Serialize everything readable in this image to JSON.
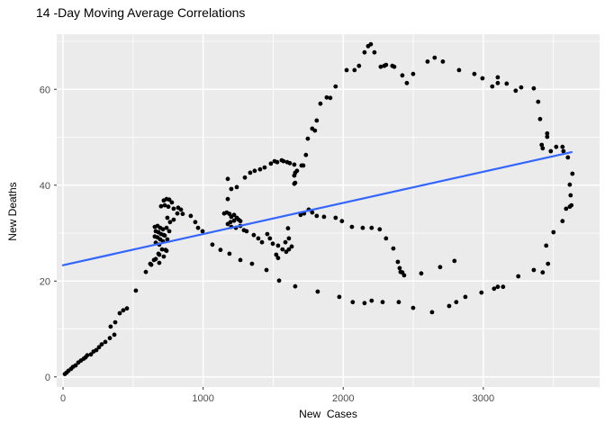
{
  "chart_data": {
    "type": "scatter",
    "title": "14 -Day Moving Average Correlations",
    "xlabel": "New  Cases",
    "ylabel": "New Deaths",
    "legend": "none",
    "grid": "white major and minor gridlines on gray panel",
    "xlim": [
      -45,
      3830
    ],
    "ylim": [
      -2.1,
      71.5
    ],
    "x_ticks": [
      0,
      1000,
      2000,
      3000
    ],
    "x_minor_ticks": [
      500,
      1500,
      2500,
      3500
    ],
    "y_ticks": [
      0,
      20,
      40,
      60
    ],
    "y_minor_ticks": [
      10,
      30,
      50,
      70
    ],
    "colors": {
      "panel_bg": "#EBEBEB",
      "grid": "#FFFFFF",
      "points": "#000000",
      "trend_line": "#3366FF",
      "tick_label": "#4D4D4D",
      "tick_mark": "#333333",
      "title_text": "#000000"
    },
    "trend_line": {
      "type": "linear",
      "x": [
        0,
        3630
      ],
      "y": [
        23.3,
        46.9
      ]
    },
    "points": [
      [
        13,
        0.6
      ],
      [
        26,
        0.9
      ],
      [
        39,
        1.3
      ],
      [
        58,
        1.7
      ],
      [
        71,
        2.1
      ],
      [
        90,
        2.4
      ],
      [
        109,
        3
      ],
      [
        128,
        3.4
      ],
      [
        148,
        3.8
      ],
      [
        161,
        4.1
      ],
      [
        173,
        4.5
      ],
      [
        199,
        4.7
      ],
      [
        218,
        5.3
      ],
      [
        238,
        5.6
      ],
      [
        257,
        6.2
      ],
      [
        276,
        6.8
      ],
      [
        302,
        7.3
      ],
      [
        334,
        8.1
      ],
      [
        366,
        8.8
      ],
      [
        340,
        10.5
      ],
      [
        373,
        11.4
      ],
      [
        405,
        13.3
      ],
      [
        430,
        13.9
      ],
      [
        456,
        14.3
      ],
      [
        520,
        18
      ],
      [
        591,
        21.9
      ],
      [
        623,
        23.6
      ],
      [
        662,
        24.6
      ],
      [
        687,
        25.5
      ],
      [
        732,
        26.5
      ],
      [
        719,
        36.8
      ],
      [
        739,
        37.1
      ],
      [
        758,
        37
      ],
      [
        777,
        36.4
      ],
      [
        726,
        35.8
      ],
      [
        700,
        35.6
      ],
      [
        752,
        35.5
      ],
      [
        790,
        35.1
      ],
      [
        822,
        35.3
      ],
      [
        842,
        34.9
      ],
      [
        816,
        34.1
      ],
      [
        854,
        34
      ],
      [
        912,
        33.6
      ],
      [
        944,
        32.3
      ],
      [
        996,
        30.4
      ],
      [
        745,
        33.2
      ],
      [
        764,
        32.3
      ],
      [
        790,
        32.8
      ],
      [
        739,
        31.1
      ],
      [
        758,
        30.4
      ],
      [
        726,
        29.5
      ],
      [
        745,
        28.7
      ],
      [
        655,
        31.3
      ],
      [
        675,
        31.5
      ],
      [
        694,
        31.1
      ],
      [
        713,
        30.8
      ],
      [
        662,
        30.4
      ],
      [
        681,
        30.2
      ],
      [
        700,
        29.8
      ],
      [
        719,
        29.6
      ],
      [
        655,
        29.3
      ],
      [
        675,
        29.1
      ],
      [
        694,
        28.7
      ],
      [
        713,
        28.3
      ],
      [
        662,
        28
      ],
      [
        687,
        27.6
      ],
      [
        707,
        26.6
      ],
      [
        739,
        26.3
      ],
      [
        681,
        25.7
      ],
      [
        719,
        25.1
      ],
      [
        649,
        24.4
      ],
      [
        687,
        23.8
      ],
      [
        630,
        23.4
      ],
      [
        964,
        31.1
      ],
      [
        1176,
        41.3
      ],
      [
        1240,
        39.6
      ],
      [
        1298,
        41.6
      ],
      [
        1201,
        39.2
      ],
      [
        1176,
        37.1
      ],
      [
        1169,
        34.3
      ],
      [
        1150,
        34.1
      ],
      [
        1188,
        34
      ],
      [
        1201,
        33.4
      ],
      [
        1221,
        33.8
      ],
      [
        1240,
        33.2
      ],
      [
        1253,
        32.8
      ],
      [
        1266,
        32.5
      ],
      [
        1221,
        32.6
      ],
      [
        1195,
        32.3
      ],
      [
        1176,
        31.9
      ],
      [
        1201,
        31.3
      ],
      [
        1234,
        31.1
      ],
      [
        1266,
        31.5
      ],
      [
        1291,
        30.6
      ],
      [
        1310,
        30.4
      ],
      [
        1362,
        29.6
      ],
      [
        1394,
        28.9
      ],
      [
        1420,
        28.1
      ],
      [
        1458,
        29.8
      ],
      [
        1477,
        28.9
      ],
      [
        1497,
        27.8
      ],
      [
        1535,
        27.4
      ],
      [
        1587,
        28.1
      ],
      [
        1612,
        28.9
      ],
      [
        1606,
        31
      ],
      [
        1593,
        26.1
      ],
      [
        1567,
        26.6
      ],
      [
        1612,
        26.6
      ],
      [
        1632,
        27.2
      ],
      [
        1535,
        24.8
      ],
      [
        1522,
        25.5
      ],
      [
        1336,
        42.6
      ],
      [
        1368,
        43
      ],
      [
        1407,
        43.3
      ],
      [
        1439,
        43.7
      ],
      [
        1484,
        44.5
      ],
      [
        1510,
        45
      ],
      [
        1529,
        44.8
      ],
      [
        1561,
        45.2
      ],
      [
        1574,
        45
      ],
      [
        1600,
        44.8
      ],
      [
        1619,
        44.6
      ],
      [
        1651,
        44.3
      ],
      [
        1702,
        44.1
      ],
      [
        1715,
        44.1
      ],
      [
        1670,
        43
      ],
      [
        1657,
        42.6
      ],
      [
        1651,
        42
      ],
      [
        1651,
        40.3
      ],
      [
        1657,
        40.5
      ],
      [
        1734,
        46.3
      ],
      [
        1747,
        49.7
      ],
      [
        1779,
        51.8
      ],
      [
        1798,
        51.4
      ],
      [
        1811,
        53.5
      ],
      [
        1837,
        57
      ],
      [
        1882,
        58.3
      ],
      [
        1908,
        58.2
      ],
      [
        1946,
        60.6
      ],
      [
        2024,
        64
      ],
      [
        2081,
        64
      ],
      [
        2113,
        64.9
      ],
      [
        2152,
        67.7
      ],
      [
        2178,
        69
      ],
      [
        2197,
        69.4
      ],
      [
        2223,
        67.7
      ],
      [
        2268,
        64.7
      ],
      [
        2293,
        64.9
      ],
      [
        2306,
        65.1
      ],
      [
        2351,
        64.9
      ],
      [
        2364,
        64.7
      ],
      [
        2422,
        62.9
      ],
      [
        2454,
        61.3
      ],
      [
        2499,
        63.2
      ],
      [
        2602,
        65.8
      ],
      [
        2653,
        66.6
      ],
      [
        2711,
        65.8
      ],
      [
        2827,
        64
      ],
      [
        2936,
        63.2
      ],
      [
        2994,
        62.3
      ],
      [
        3064,
        60.6
      ],
      [
        3103,
        62.5
      ],
      [
        3103,
        61.3
      ],
      [
        3167,
        61.2
      ],
      [
        3231,
        59.7
      ],
      [
        3270,
        60.4
      ],
      [
        3360,
        60.2
      ],
      [
        3392,
        57.4
      ],
      [
        3405,
        53.8
      ],
      [
        3456,
        50.8
      ],
      [
        3456,
        50.1
      ],
      [
        3417,
        48.4
      ],
      [
        3424,
        47.7
      ],
      [
        3482,
        47.1
      ],
      [
        3520,
        48
      ],
      [
        3565,
        48
      ],
      [
        3572,
        47.1
      ],
      [
        3604,
        45.8
      ],
      [
        3636,
        42.4
      ],
      [
        3617,
        40.1
      ],
      [
        3623,
        37.9
      ],
      [
        3629,
        35.8
      ],
      [
        3617,
        35.5
      ],
      [
        3591,
        35.1
      ],
      [
        3565,
        32.5
      ],
      [
        3501,
        30.2
      ],
      [
        3449,
        27.4
      ],
      [
        3462,
        23.6
      ],
      [
        3424,
        21.8
      ],
      [
        3360,
        22.3
      ],
      [
        3250,
        21
      ],
      [
        3141,
        18.8
      ],
      [
        3103,
        18.8
      ],
      [
        3077,
        18.4
      ],
      [
        2987,
        17.6
      ],
      [
        2872,
        16.7
      ],
      [
        2807,
        15.6
      ],
      [
        2756,
        14.8
      ],
      [
        2634,
        13.5
      ],
      [
        2499,
        14.4
      ],
      [
        2396,
        15.6
      ],
      [
        2281,
        15.6
      ],
      [
        2203,
        15.9
      ],
      [
        2152,
        15.4
      ],
      [
        2068,
        15.6
      ],
      [
        1972,
        16.7
      ],
      [
        1818,
        17.8
      ],
      [
        1657,
        18.9
      ],
      [
        1542,
        20.1
      ],
      [
        1452,
        22.3
      ],
      [
        1349,
        23.6
      ],
      [
        1266,
        24.4
      ],
      [
        1188,
        25.7
      ],
      [
        1124,
        26.5
      ],
      [
        1066,
        27.6
      ],
      [
        1696,
        33.8
      ],
      [
        1721,
        34.1
      ],
      [
        1754,
        34.9
      ],
      [
        1779,
        34.3
      ],
      [
        1811,
        33.6
      ],
      [
        1863,
        33.4
      ],
      [
        1946,
        33.2
      ],
      [
        1991,
        32.5
      ],
      [
        2062,
        31.3
      ],
      [
        2139,
        31.1
      ],
      [
        2203,
        31.1
      ],
      [
        2261,
        30.8
      ],
      [
        2306,
        28.9
      ],
      [
        2358,
        26.8
      ],
      [
        2390,
        24
      ],
      [
        2403,
        22.7
      ],
      [
        2409,
        21.9
      ],
      [
        2422,
        21.8
      ],
      [
        2435,
        21.2
      ],
      [
        2557,
        21.6
      ],
      [
        2692,
        22.9
      ],
      [
        2794,
        24.2
      ]
    ]
  }
}
